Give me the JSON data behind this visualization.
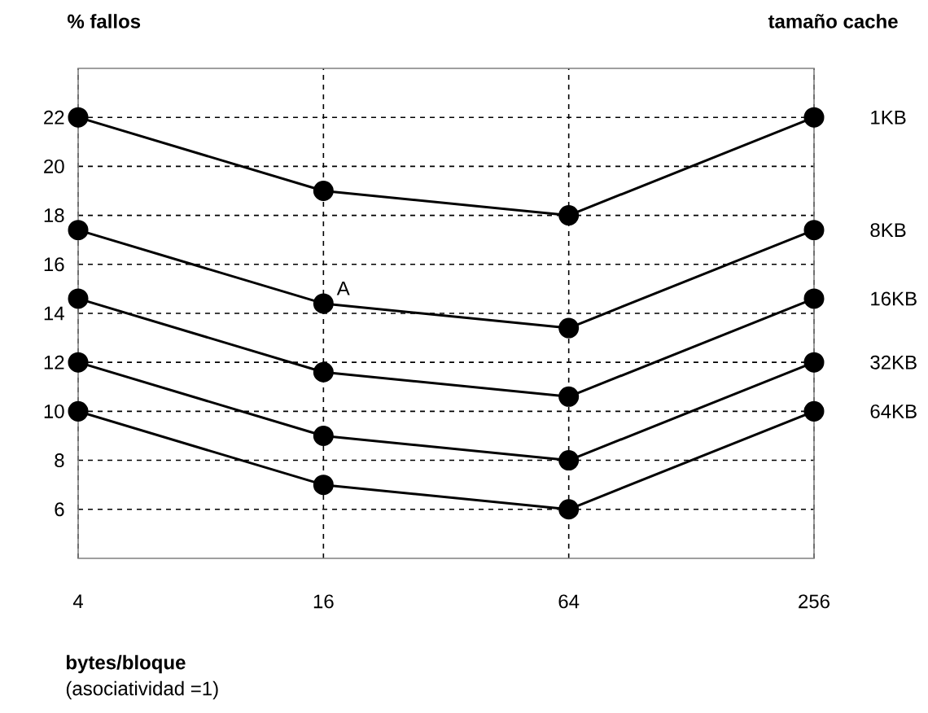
{
  "chart_data": {
    "type": "line",
    "ylabel": "% fallos",
    "legend_title": "tamaño cache",
    "xlabel": "bytes/bloque",
    "annotations": [
      "(asociatividad =1)",
      {
        "text": "A",
        "x": "16",
        "y": 14.4
      }
    ],
    "categories": [
      "4",
      "16",
      "64",
      "256"
    ],
    "ylim": [
      4,
      24
    ],
    "yticks": [
      6,
      8,
      10,
      12,
      14,
      16,
      18,
      20,
      22
    ],
    "grid": true,
    "marker": "circle",
    "line_style": "solid",
    "series": [
      {
        "name": "1KB",
        "color": "#000000",
        "values": [
          22,
          19,
          18,
          22
        ]
      },
      {
        "name": "8KB",
        "color": "#000000",
        "values": [
          17.4,
          14.4,
          13.4,
          17.4
        ]
      },
      {
        "name": "16KB",
        "color": "#000000",
        "values": [
          14.6,
          11.6,
          10.6,
          14.6
        ]
      },
      {
        "name": "32KB",
        "color": "#000000",
        "values": [
          12,
          9,
          8,
          12
        ]
      },
      {
        "name": "64KB",
        "color": "#000000",
        "values": [
          10,
          7,
          6,
          10
        ]
      }
    ]
  }
}
